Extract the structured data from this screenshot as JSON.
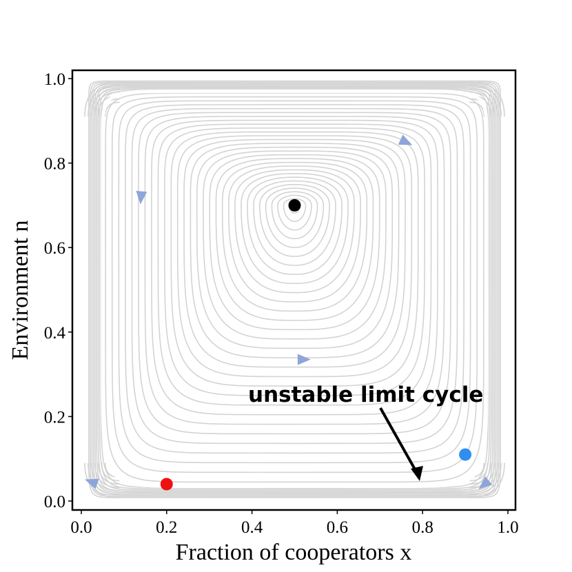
{
  "chart_data": {
    "type": "phase-portrait",
    "xlabel": "Fraction of cooperators x",
    "ylabel": "Environment n",
    "xlim": [
      0.0,
      1.0
    ],
    "ylim": [
      0.0,
      1.0
    ],
    "xticks": [
      "0.0",
      "0.2",
      "0.4",
      "0.6",
      "0.8",
      "1.0"
    ],
    "yticks": [
      "0.0",
      "0.2",
      "0.4",
      "0.6",
      "0.8",
      "1.0"
    ],
    "grid": false,
    "center": {
      "x": 0.5,
      "y": 0.7
    },
    "unstable_limit_cycle": {
      "x_range": [
        0.05,
        0.95
      ],
      "y_range": [
        0.035,
        0.97
      ]
    },
    "points": [
      {
        "name": "center",
        "x": 0.5,
        "y": 0.7,
        "color": "#000000"
      },
      {
        "name": "red-point",
        "x": 0.2,
        "y": 0.04,
        "color": "#ee1111"
      },
      {
        "name": "blue-point",
        "x": 0.9,
        "y": 0.11,
        "color": "#2e8ff0"
      }
    ],
    "arrows": [
      {
        "x": 0.76,
        "y": 0.85,
        "dir": "right-down"
      },
      {
        "x": 0.14,
        "y": 0.72,
        "dir": "down"
      },
      {
        "x": 0.52,
        "y": 0.335,
        "dir": "right"
      },
      {
        "x": 0.025,
        "y": 0.045,
        "dir": "left"
      },
      {
        "x": 0.945,
        "y": 0.04,
        "dir": "left-down"
      }
    ],
    "annotation": {
      "text": "unstable limit cycle",
      "arrow_to": {
        "x": 0.8,
        "y": 0.05
      }
    },
    "colors": {
      "streamline": "#d3d3d3",
      "arrow": "#8ea5d8",
      "cycle": "#ffffff"
    }
  }
}
